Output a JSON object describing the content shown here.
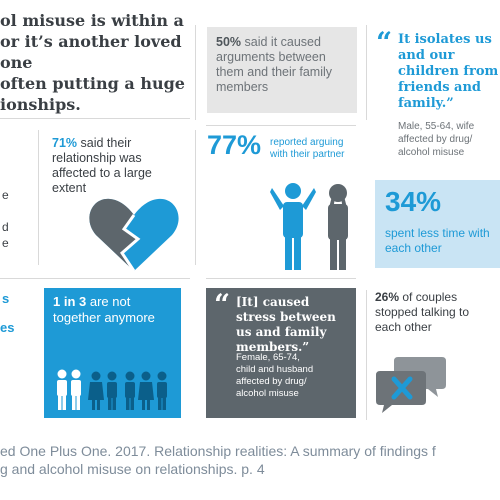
{
  "intro": {
    "line1": "ol misuse is within a",
    "line2": "or it’s another loved one",
    "line3": "often putting a huge",
    "line4": "ionships."
  },
  "left_frag": {
    "a": "e",
    "b": "d",
    "c": "e",
    "d": "s",
    "e": "es"
  },
  "stat50": {
    "pct": "50%",
    "text": "said it caused arguments between them and their family members"
  },
  "quote1": {
    "mark": "“",
    "text": "It isolates us and our children from friends and family.”",
    "attribution": "Male, 55-64, wife affected by drug/ alcohol misuse"
  },
  "stat71": {
    "pct": "71%",
    "text": "said their relationship was affected to a large extent"
  },
  "stat77": {
    "pct": "77%",
    "text": "reported arguing with their partner"
  },
  "stat34": {
    "pct": "34%",
    "text": "spent less time with each other"
  },
  "stat1in3": {
    "pct": "1 in 3",
    "text": "are not together anymore"
  },
  "quote2": {
    "mark": "“",
    "text": "[It] caused stress between us and family members.”",
    "attribution": "Female, 65-74, child and husband affected by drug/ alcohol misuse"
  },
  "stat26": {
    "pct": "26%",
    "text": "of couples stopped talking to each other"
  },
  "footer": {
    "line1": "ed One Plus One. 2017. Relationship realities: A summary of findings f",
    "line2": "g and alcohol misuse on relationships. p. 4"
  },
  "colors": {
    "blue": "#1e9ad6",
    "dark_panel": "#5d666c",
    "light_blue": "#c9e4f4",
    "gray_panel": "#e6e6e6"
  }
}
